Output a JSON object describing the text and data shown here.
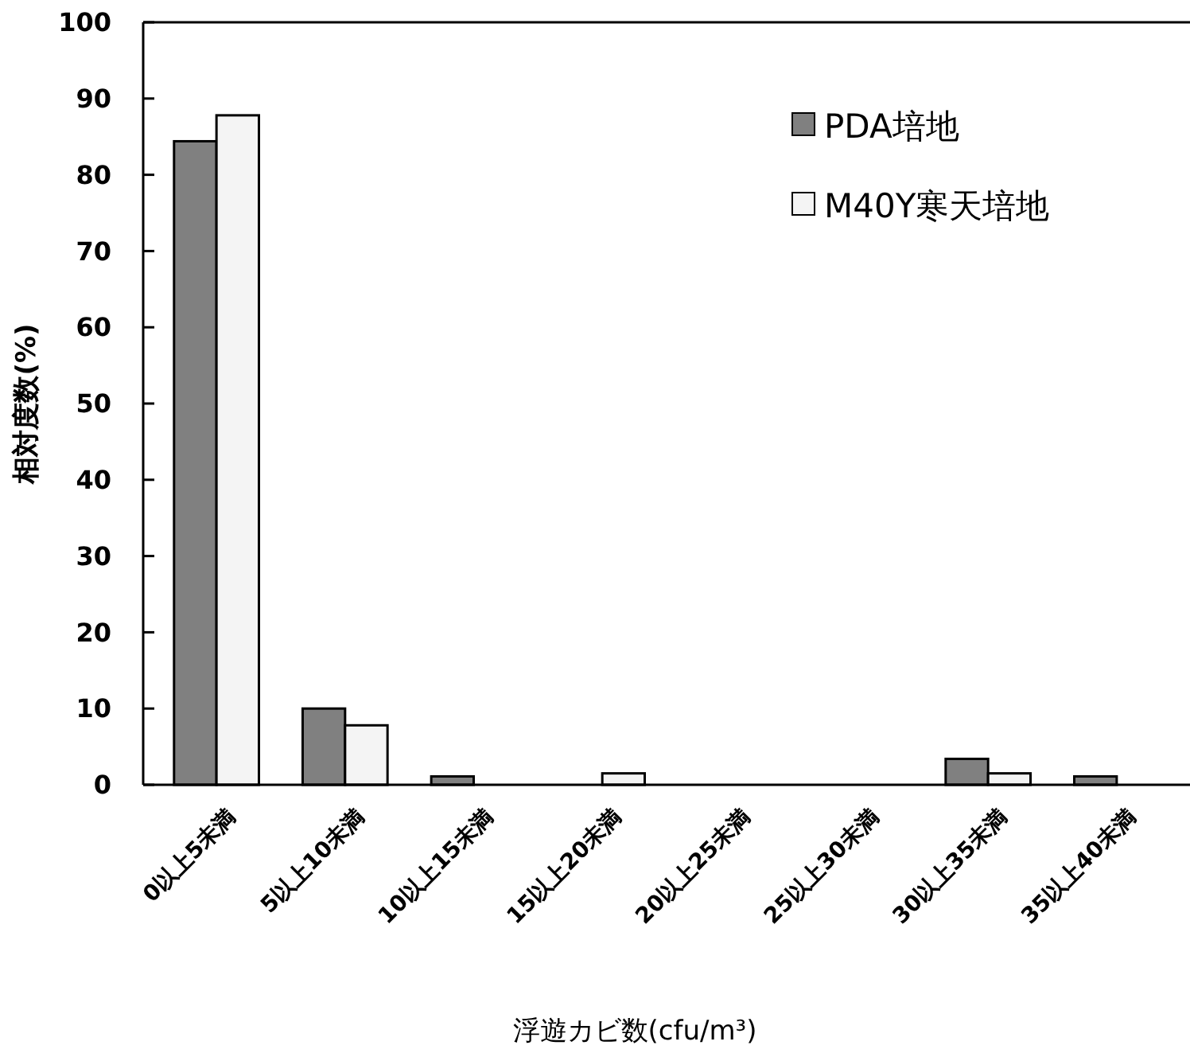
{
  "chart_data": {
    "type": "bar",
    "xlabel": "浮遊カビ数(cfu/m³)",
    "ylabel": "相対度数(%)",
    "categories": [
      "0以上5未満",
      "5以上10未満",
      "10以上15未満",
      "15以上20未満",
      "20以上25未満",
      "25以上30未満",
      "30以上35未満",
      "35以上40未満"
    ],
    "series": [
      {
        "name": "PDA培地",
        "color": "#808080",
        "values": [
          84.4,
          10,
          1.1,
          0,
          0,
          0,
          3.4,
          1.1
        ]
      },
      {
        "name": "M40Y寒天培地",
        "color": "#f4f4f4",
        "values": [
          87.8,
          7.8,
          0,
          1.5,
          0,
          0,
          1.5,
          0
        ]
      }
    ],
    "ylim": [
      0,
      100
    ],
    "yticks": [
      0,
      10,
      20,
      30,
      40,
      50,
      60,
      70,
      80,
      90,
      100
    ],
    "legend": "top right"
  }
}
